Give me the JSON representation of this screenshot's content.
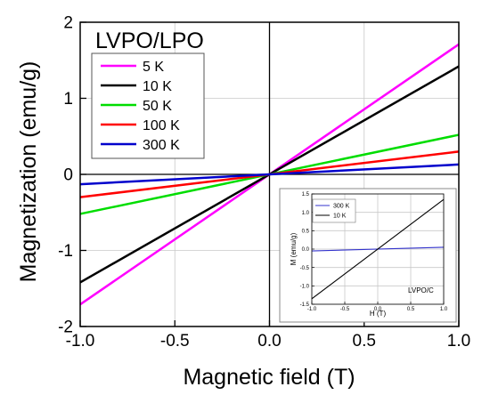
{
  "chart_data": [
    {
      "type": "line",
      "title": "LVPO/LPO",
      "xlabel": "Magnetic field (T)",
      "ylabel": "Magnetization (emu/g)",
      "xlim": [
        -1.0,
        1.0
      ],
      "ylim": [
        -2,
        2
      ],
      "xticks": [
        "-1.0",
        "-0.5",
        "0.0",
        "0.5",
        "1.0"
      ],
      "xtick_values": [
        -1.0,
        -0.5,
        0.0,
        0.5,
        1.0
      ],
      "yticks": [
        "-2",
        "-1",
        "0",
        "1",
        "2"
      ],
      "ytick_values": [
        -2,
        -1,
        0,
        1,
        2
      ],
      "grid": true,
      "legend_position": "top-left",
      "series": [
        {
          "name": "5 K",
          "color": "#ff00ff",
          "x": [
            -1.0,
            1.0
          ],
          "y": [
            -1.71,
            1.71
          ]
        },
        {
          "name": "10 K",
          "color": "#000000",
          "x": [
            -1.0,
            1.0
          ],
          "y": [
            -1.42,
            1.42
          ]
        },
        {
          "name": "50 K",
          "color": "#00dd00",
          "x": [
            -1.0,
            1.0
          ],
          "y": [
            -0.52,
            0.52
          ]
        },
        {
          "name": "100 K",
          "color": "#ff0000",
          "x": [
            -1.0,
            1.0
          ],
          "y": [
            -0.3,
            0.3
          ]
        },
        {
          "name": "300 K",
          "color": "#0000cc",
          "x": [
            -1.0,
            1.0
          ],
          "y": [
            -0.13,
            0.13
          ]
        }
      ]
    },
    {
      "type": "line",
      "title": "LVPO/C",
      "xlabel": "H (T)",
      "ylabel": "M (emu/g)",
      "xlim": [
        -1.0,
        1.0
      ],
      "ylim": [
        -1.5,
        1.5
      ],
      "xticks": [
        "-1.0",
        "-0.5",
        "0.0",
        "0.5",
        "1.0"
      ],
      "xtick_values": [
        -1.0,
        -0.5,
        0.0,
        0.5,
        1.0
      ],
      "yticks": [
        "-1.5",
        "-1.0",
        "-0.5",
        "0.0",
        "0.5",
        "1.0",
        "1.5"
      ],
      "ytick_values": [
        -1.5,
        -1.0,
        -0.5,
        0.0,
        0.5,
        1.0,
        1.5
      ],
      "grid": true,
      "legend_position": "top-left",
      "series": [
        {
          "name": "300 K",
          "color": "#3333cc",
          "x": [
            -1.0,
            1.0
          ],
          "y": [
            -0.05,
            0.05
          ]
        },
        {
          "name": "10 K",
          "color": "#000000",
          "x": [
            -1.0,
            1.0
          ],
          "y": [
            -1.35,
            1.35
          ]
        }
      ]
    }
  ]
}
